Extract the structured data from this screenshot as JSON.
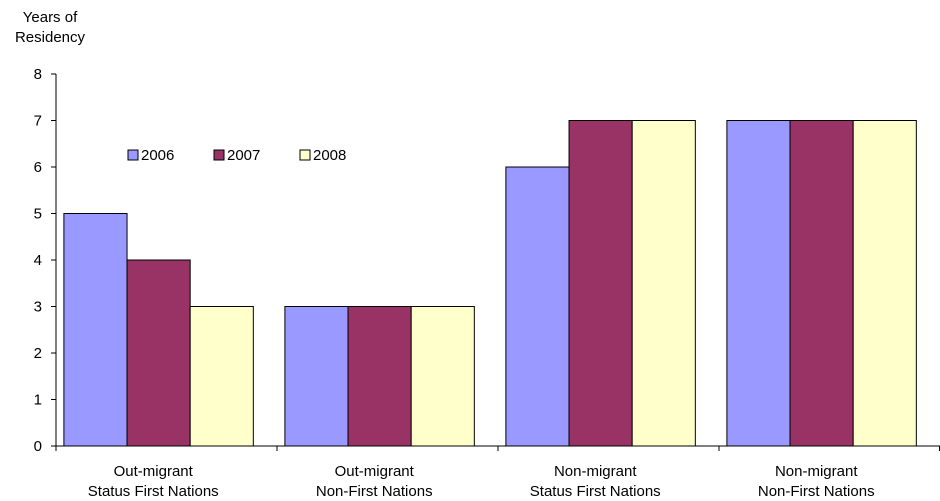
{
  "chart_data": {
    "type": "bar",
    "ylabel_lines": [
      "Years of",
      "Residency"
    ],
    "categories": [
      [
        "Out-migrant",
        "Status First Nations"
      ],
      [
        "Out-migrant",
        "Non-First Nations"
      ],
      [
        "Non-migrant",
        "Status First Nations"
      ],
      [
        "Non-migrant",
        "Non-First Nations"
      ]
    ],
    "series": [
      {
        "name": "2006",
        "color": "#9999ff",
        "values": [
          5,
          3,
          6,
          7
        ]
      },
      {
        "name": "2007",
        "color": "#993366",
        "values": [
          4,
          3,
          7,
          7
        ]
      },
      {
        "name": "2008",
        "color": "#ffffcc",
        "values": [
          3,
          3,
          7,
          7
        ]
      }
    ],
    "ylim": [
      0,
      8
    ],
    "yticks": [
      0,
      1,
      2,
      3,
      4,
      5,
      6,
      7,
      8
    ],
    "grid": false,
    "legend_position": "top-left"
  }
}
